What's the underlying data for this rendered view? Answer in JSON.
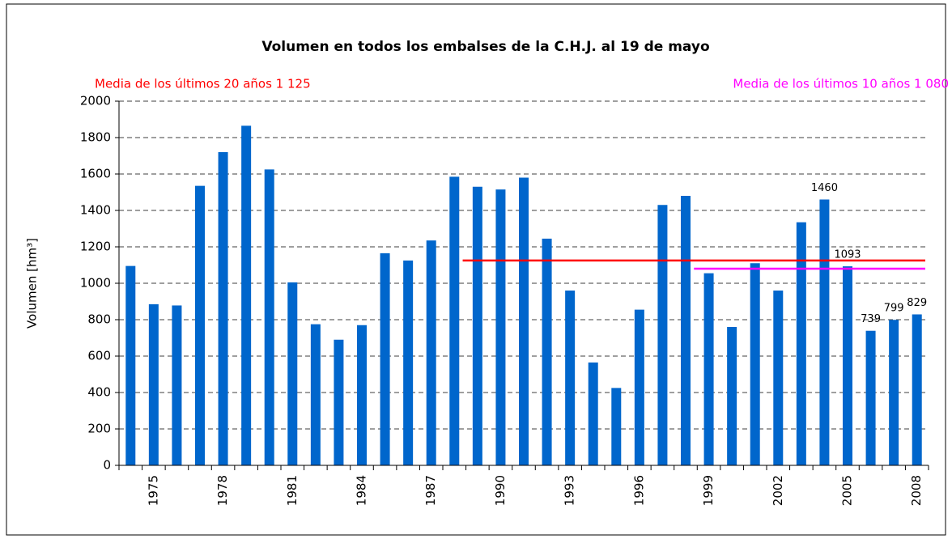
{
  "chart_data": {
    "type": "bar",
    "title": "Volumen en todos los embalses de la C.H.J. al 19 de mayo",
    "ylabel": "Volumen [hm³]",
    "categories": [
      null,
      "1975",
      null,
      null,
      "1978",
      null,
      null,
      "1981",
      null,
      null,
      "1984",
      null,
      null,
      "1987",
      null,
      null,
      "1990",
      null,
      null,
      "1993",
      null,
      null,
      "1996",
      null,
      null,
      "1999",
      null,
      null,
      "2002",
      null,
      null,
      "2005",
      null,
      null,
      "2008"
    ],
    "values": [
      1095,
      885,
      878,
      1535,
      1720,
      1865,
      1625,
      1005,
      775,
      690,
      770,
      1165,
      1125,
      1235,
      1585,
      1530,
      1515,
      1580,
      1245,
      960,
      565,
      425,
      855,
      1430,
      1480,
      1055,
      760,
      1110,
      960,
      1335,
      1460,
      1093,
      739,
      799,
      829
    ],
    "value_labels": [
      null,
      null,
      null,
      null,
      null,
      null,
      null,
      null,
      null,
      null,
      null,
      null,
      null,
      null,
      null,
      null,
      null,
      null,
      null,
      null,
      null,
      null,
      null,
      null,
      null,
      null,
      null,
      null,
      null,
      null,
      "1460",
      "1093",
      "739",
      "799",
      "829"
    ],
    "color": "#0066cc",
    "ylim": [
      0,
      2000
    ],
    "yticks": [
      0,
      200,
      400,
      600,
      800,
      1000,
      1200,
      1400,
      1600,
      1800,
      2000
    ],
    "grid": true,
    "reference_lines": [
      {
        "label": "Media de los últimos 20 años 1 125",
        "value": 1125,
        "years": 20,
        "color": "#ff0000",
        "corner": "left"
      },
      {
        "label": "Media de los últimos 10 años 1 080",
        "value": 1080,
        "years": 10,
        "color": "#ff00ff",
        "corner": "right"
      }
    ]
  }
}
